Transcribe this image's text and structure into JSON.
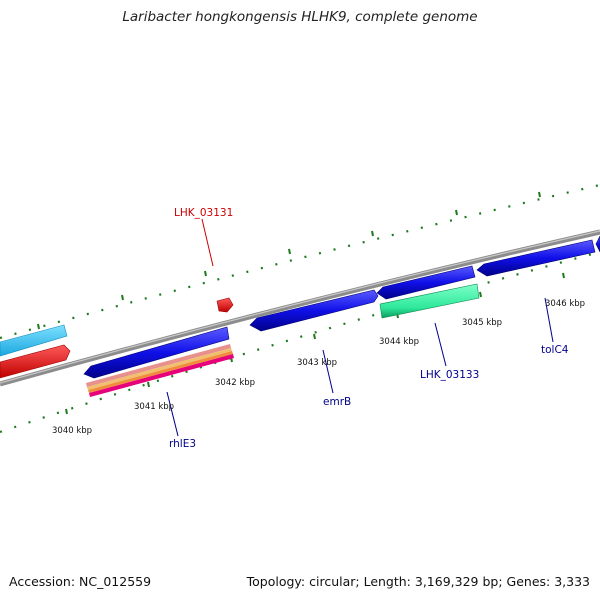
{
  "title": "Laribacter hongkongensis HLHK9, complete genome",
  "footer": {
    "accession": "Accession: NC_012559",
    "summary": "Topology: circular; Length: 3,169,329 bp; Genes: 3,333"
  },
  "colors": {
    "backbone": "#8c8c8c",
    "ticks": "#1f7a1f",
    "forward_gene": "#0a0ae6",
    "rna": "#e6007a",
    "label_red": "#cc0000",
    "label_blue": "#00008b"
  },
  "kbp_labels": [
    {
      "id": "3040",
      "text": "3040 kbp"
    },
    {
      "id": "3041",
      "text": "3041 kbp"
    },
    {
      "id": "3042",
      "text": "3042 kbp"
    },
    {
      "id": "3043",
      "text": "3043 kbp"
    },
    {
      "id": "3044",
      "text": "3044 kbp"
    },
    {
      "id": "3045",
      "text": "3045 kbp"
    },
    {
      "id": "3046",
      "text": "3046 kbp"
    }
  ],
  "gene_labels": [
    {
      "id": "lhk03131",
      "text": "LHK_03131",
      "color": "#cc0000"
    },
    {
      "id": "rhle3",
      "text": "rhlE3",
      "color": "#00008b"
    },
    {
      "id": "emrb",
      "text": "emrB",
      "color": "#00008b"
    },
    {
      "id": "lhk03133",
      "text": "LHK_03133",
      "color": "#00008b"
    },
    {
      "id": "tolc4",
      "text": "tolC4",
      "color": "#00008b"
    }
  ]
}
